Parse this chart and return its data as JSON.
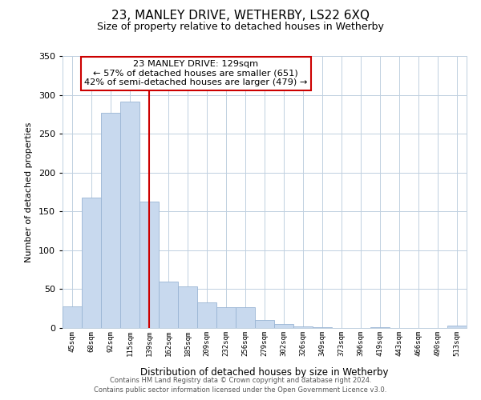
{
  "title": "23, MANLEY DRIVE, WETHERBY, LS22 6XQ",
  "subtitle": "Size of property relative to detached houses in Wetherby",
  "xlabel": "Distribution of detached houses by size in Wetherby",
  "ylabel": "Number of detached properties",
  "bar_labels": [
    "45sqm",
    "68sqm",
    "92sqm",
    "115sqm",
    "139sqm",
    "162sqm",
    "185sqm",
    "209sqm",
    "232sqm",
    "256sqm",
    "279sqm",
    "302sqm",
    "326sqm",
    "349sqm",
    "373sqm",
    "396sqm",
    "419sqm",
    "443sqm",
    "466sqm",
    "490sqm",
    "513sqm"
  ],
  "bar_values": [
    28,
    168,
    277,
    291,
    163,
    60,
    54,
    33,
    27,
    27,
    10,
    5,
    2,
    1,
    0,
    0,
    1,
    0,
    0,
    0,
    3
  ],
  "bar_color": "#c8d9ee",
  "bar_edge_color": "#9ab5d4",
  "highlight_index": 4,
  "vline_color": "#cc0000",
  "annotation_title": "23 MANLEY DRIVE: 129sqm",
  "annotation_line1": "← 57% of detached houses are smaller (651)",
  "annotation_line2": "42% of semi-detached houses are larger (479) →",
  "annotation_box_color": "#ffffff",
  "annotation_box_edge": "#cc0000",
  "ylim": [
    0,
    350
  ],
  "yticks": [
    0,
    50,
    100,
    150,
    200,
    250,
    300,
    350
  ],
  "footer1": "Contains HM Land Registry data © Crown copyright and database right 2024.",
  "footer2": "Contains public sector information licensed under the Open Government Licence v3.0.",
  "bg_color": "#ffffff",
  "grid_color": "#c0d0e0"
}
